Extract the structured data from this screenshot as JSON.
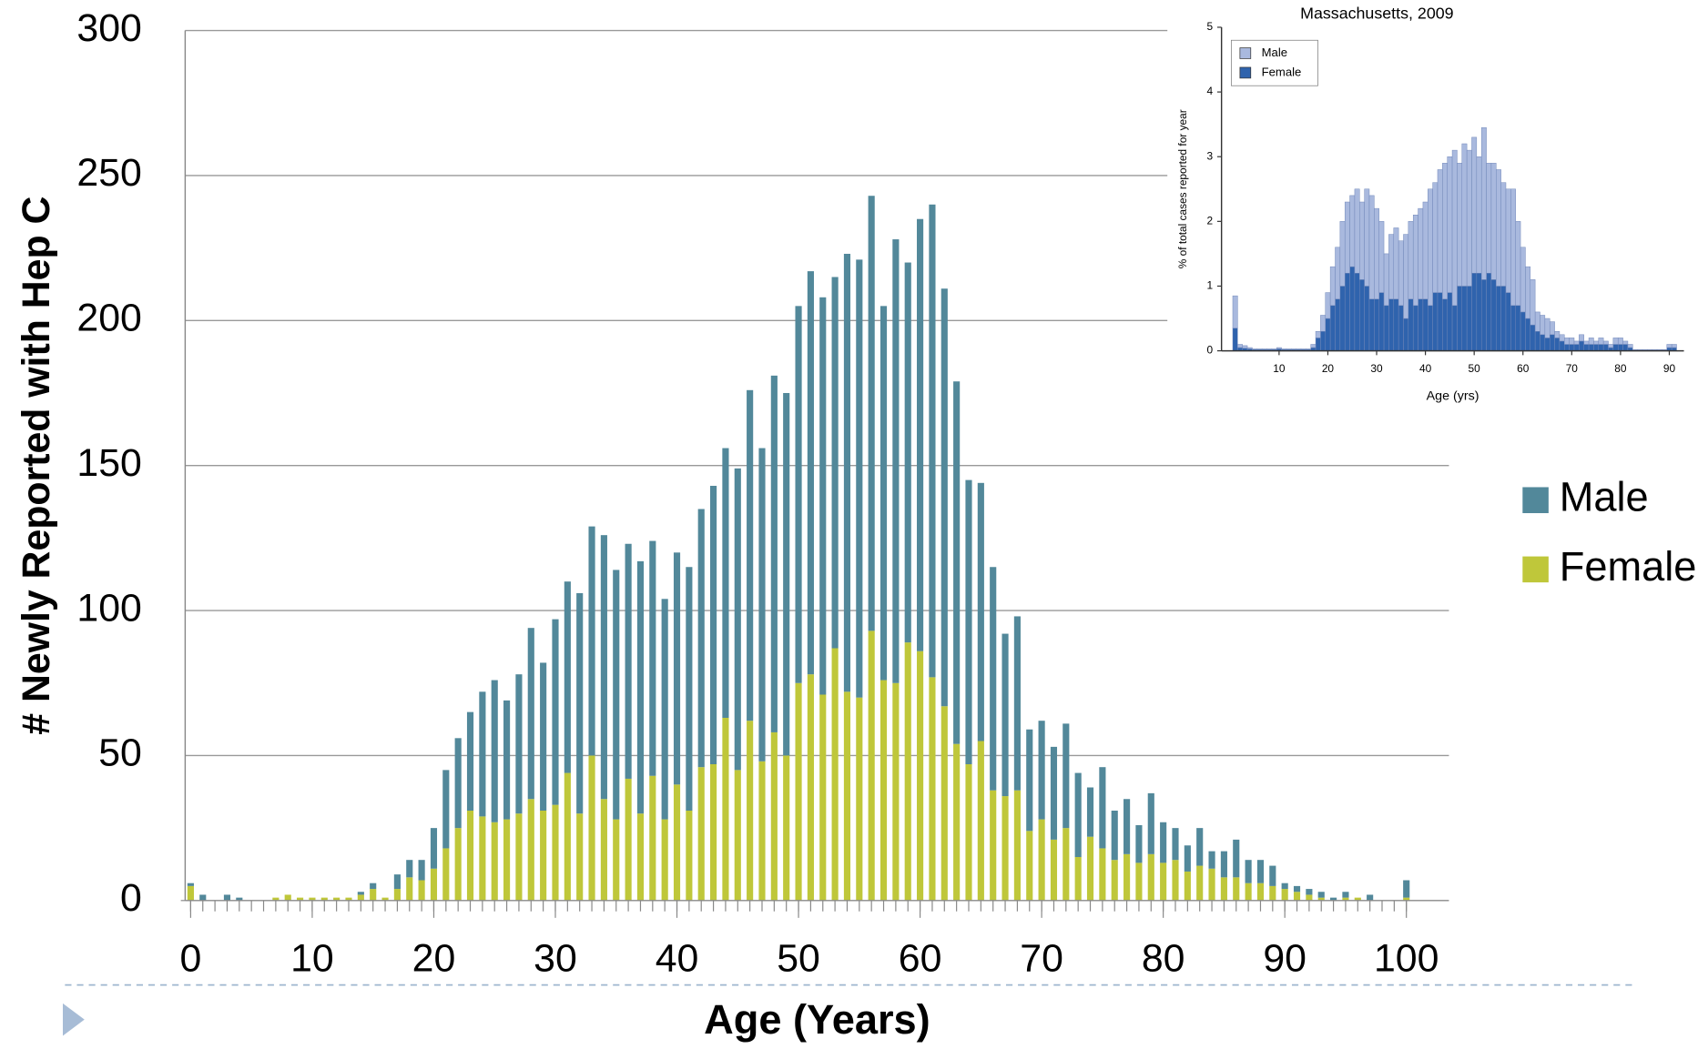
{
  "chart_data": [
    {
      "type": "bar",
      "stacked": true,
      "grid": true,
      "legend": "right",
      "y_label": "# Newly Reported with Hep C",
      "x_label": "Age (Years)",
      "x": [
        0,
        1,
        2,
        3,
        4,
        5,
        6,
        7,
        8,
        9,
        10,
        11,
        12,
        13,
        14,
        15,
        16,
        17,
        18,
        19,
        20,
        21,
        22,
        23,
        24,
        25,
        26,
        27,
        28,
        29,
        30,
        31,
        32,
        33,
        34,
        35,
        36,
        37,
        38,
        39,
        40,
        41,
        42,
        43,
        44,
        45,
        46,
        47,
        48,
        49,
        50,
        51,
        52,
        53,
        54,
        55,
        56,
        57,
        58,
        59,
        60,
        61,
        62,
        63,
        64,
        65,
        66,
        67,
        68,
        69,
        70,
        71,
        72,
        73,
        74,
        75,
        76,
        77,
        78,
        79,
        80,
        81,
        82,
        83,
        84,
        85,
        86,
        87,
        88,
        89,
        90,
        91,
        92,
        93,
        94,
        95,
        96,
        97,
        98,
        99,
        100
      ],
      "xlim": [
        -0.45,
        103.5
      ],
      "xticks": [
        0,
        10,
        20,
        30,
        40,
        50,
        60,
        70,
        80,
        90,
        100
      ],
      "ylim": [
        0,
        300
      ],
      "yticks": [
        0,
        50,
        100,
        150,
        200,
        250,
        300
      ],
      "series": [
        {
          "name": "Male",
          "color": "#52889a",
          "values": [
            1,
            2,
            0,
            2,
            1,
            0,
            0,
            0,
            0,
            0,
            0,
            0,
            0,
            0,
            1,
            2,
            0,
            5,
            6,
            7,
            14,
            27,
            31,
            34,
            43,
            49,
            41,
            48,
            59,
            51,
            64,
            66,
            76,
            79,
            91,
            86,
            81,
            87,
            81,
            76,
            80,
            84,
            89,
            96,
            93,
            104,
            114,
            108,
            123,
            125,
            130,
            139,
            137,
            128,
            151,
            151,
            150,
            129,
            153,
            131,
            149,
            163,
            144,
            125,
            98,
            89,
            77,
            56,
            60,
            35,
            34,
            32,
            36,
            29,
            17,
            28,
            17,
            19,
            13,
            21,
            14,
            11,
            9,
            13,
            6,
            9,
            13,
            8,
            8,
            7,
            2,
            2,
            2,
            2,
            1,
            2,
            0,
            2,
            0,
            0,
            6
          ]
        },
        {
          "name": "Female",
          "color": "#bfc73a",
          "values": [
            5,
            0,
            0,
            0,
            0,
            0,
            0,
            1,
            2,
            1,
            1,
            1,
            1,
            1,
            2,
            4,
            1,
            4,
            8,
            7,
            11,
            18,
            25,
            31,
            29,
            27,
            28,
            30,
            35,
            31,
            33,
            44,
            30,
            50,
            35,
            28,
            42,
            30,
            43,
            28,
            40,
            31,
            46,
            47,
            63,
            45,
            62,
            48,
            58,
            50,
            75,
            78,
            71,
            87,
            72,
            70,
            93,
            76,
            75,
            89,
            86,
            77,
            67,
            54,
            47,
            55,
            38,
            36,
            38,
            24,
            28,
            21,
            25,
            15,
            22,
            18,
            14,
            16,
            13,
            16,
            13,
            14,
            10,
            12,
            11,
            8,
            8,
            6,
            6,
            5,
            4,
            3,
            2,
            1,
            0,
            1,
            1,
            0,
            0,
            0,
            1
          ]
        }
      ]
    },
    {
      "type": "bar",
      "stacked": true,
      "grid": false,
      "legend": "upper left",
      "title": "Massachusetts, 2009",
      "y_label": "% of total cases reported for year",
      "x_label": "Age (yrs)",
      "x": [
        1,
        2,
        3,
        4,
        5,
        6,
        7,
        8,
        9,
        10,
        11,
        12,
        13,
        14,
        15,
        16,
        17,
        18,
        19,
        20,
        21,
        22,
        23,
        24,
        25,
        26,
        27,
        28,
        29,
        30,
        31,
        32,
        33,
        34,
        35,
        36,
        37,
        38,
        39,
        40,
        41,
        42,
        43,
        44,
        45,
        46,
        47,
        48,
        49,
        50,
        51,
        52,
        53,
        54,
        55,
        56,
        57,
        58,
        59,
        60,
        61,
        62,
        63,
        64,
        65,
        66,
        67,
        68,
        69,
        70,
        71,
        72,
        73,
        74,
        75,
        76,
        77,
        78,
        79,
        80,
        81,
        82,
        83,
        84,
        85,
        86,
        87,
        88,
        89,
        90,
        91
      ],
      "xlim": [
        -1.8,
        93
      ],
      "xticks": [
        10,
        20,
        30,
        40,
        50,
        60,
        70,
        80,
        90
      ],
      "ylim": [
        0,
        5
      ],
      "yticks": [
        0,
        1,
        2,
        3,
        4,
        5
      ],
      "series": [
        {
          "name": "Male",
          "color": "#a9b9de",
          "values": [
            0.5,
            0.05,
            0.04,
            0.02,
            0.01,
            0.01,
            0.01,
            0.01,
            0.01,
            0.02,
            0.01,
            0.01,
            0.01,
            0.01,
            0.01,
            0.01,
            0.05,
            0.1,
            0.25,
            0.4,
            0.6,
            0.8,
            1.0,
            1.1,
            1.1,
            1.3,
            1.2,
            1.5,
            1.6,
            1.4,
            1.1,
            0.8,
            1.0,
            1.1,
            1.0,
            1.3,
            1.2,
            1.4,
            1.4,
            1.5,
            1.8,
            1.7,
            1.9,
            2.1,
            2.1,
            2.4,
            1.9,
            2.2,
            2.1,
            2.1,
            1.8,
            2.35,
            1.7,
            1.8,
            1.8,
            1.6,
            1.6,
            1.8,
            1.3,
            1.0,
            0.8,
            0.7,
            0.3,
            0.3,
            0.3,
            0.2,
            0.1,
            0.1,
            0.1,
            0.1,
            0.05,
            0.1,
            0.05,
            0.1,
            0.05,
            0.1,
            0.05,
            0.05,
            0.1,
            0.1,
            0.05,
            0.05,
            0.01,
            0.01,
            0.01,
            0.01,
            0.01,
            0.01,
            0.01,
            0.05,
            0.05
          ]
        },
        {
          "name": "Female",
          "color": "#2f63ad",
          "values": [
            0.35,
            0.05,
            0.04,
            0.03,
            0.02,
            0.02,
            0.02,
            0.02,
            0.02,
            0.03,
            0.02,
            0.02,
            0.02,
            0.02,
            0.02,
            0.02,
            0.05,
            0.2,
            0.3,
            0.5,
            0.7,
            0.8,
            1.0,
            1.2,
            1.3,
            1.2,
            1.1,
            1.0,
            0.8,
            0.8,
            0.9,
            0.7,
            0.8,
            0.8,
            0.7,
            0.5,
            0.8,
            0.7,
            0.8,
            0.8,
            0.7,
            0.9,
            0.9,
            0.8,
            0.9,
            0.7,
            1.0,
            1.0,
            1.0,
            1.2,
            1.2,
            1.1,
            1.2,
            1.1,
            1.0,
            1.0,
            0.9,
            0.7,
            0.7,
            0.6,
            0.5,
            0.4,
            0.3,
            0.25,
            0.2,
            0.25,
            0.2,
            0.15,
            0.1,
            0.1,
            0.1,
            0.15,
            0.1,
            0.1,
            0.1,
            0.1,
            0.1,
            0.05,
            0.1,
            0.1,
            0.1,
            0.05,
            0.01,
            0.01,
            0.01,
            0.01,
            0.01,
            0.01,
            0.01,
            0.05,
            0.05
          ]
        }
      ]
    }
  ]
}
